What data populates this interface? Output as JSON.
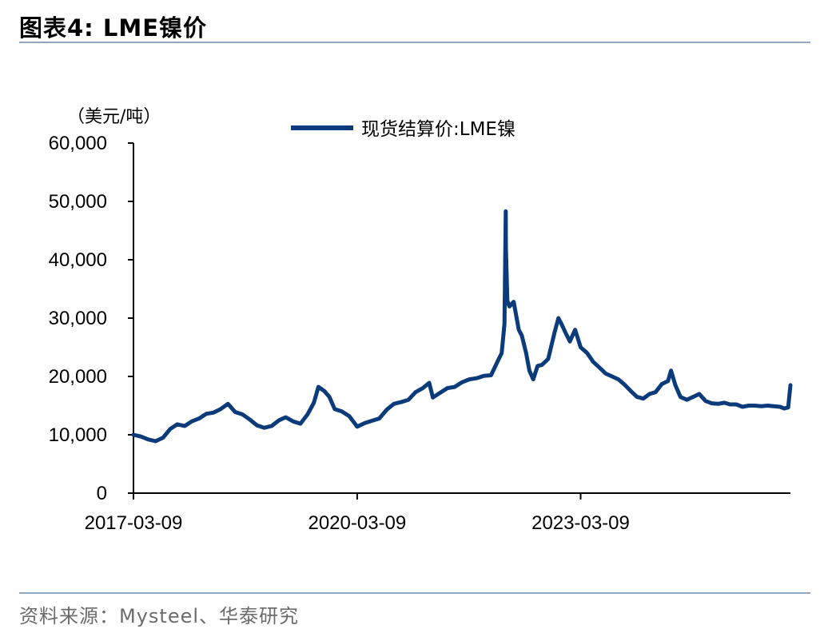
{
  "figure": {
    "title": "图表4:   LME镍价",
    "source": "资料来源：Mysteel、华泰研究"
  },
  "colors": {
    "series": "#0b3b7a",
    "rule": "#8fa7c3",
    "axis": "#000000"
  },
  "chart_data": {
    "type": "line",
    "title": "LME镍价",
    "ylabel": "（美元/吨）",
    "xlabel": "",
    "ylim": [
      0,
      60000
    ],
    "y_ticks": [
      0,
      10000,
      20000,
      30000,
      40000,
      50000,
      60000
    ],
    "y_tick_labels": [
      "0",
      "10,000",
      "20,000",
      "30,000",
      "40,000",
      "50,000",
      "60,000"
    ],
    "x_ticks": [
      "2017-03-09",
      "2020-03-09",
      "2023-03-09"
    ],
    "xlim": [
      "2017-03-09",
      "2025-12-31"
    ],
    "legend": {
      "position": "top-center"
    },
    "grid": false,
    "series": [
      {
        "name": "现货结算价:LME镍",
        "x": [
          "2017-03-09",
          "2017-04-15",
          "2017-05-20",
          "2017-06-25",
          "2017-08-01",
          "2017-09-05",
          "2017-10-10",
          "2017-11-15",
          "2017-12-20",
          "2018-01-25",
          "2018-03-01",
          "2018-04-05",
          "2018-05-10",
          "2018-06-15",
          "2018-07-20",
          "2018-08-25",
          "2018-09-30",
          "2018-11-05",
          "2018-12-10",
          "2019-01-15",
          "2019-02-20",
          "2019-03-25",
          "2019-04-30",
          "2019-06-05",
          "2019-07-10",
          "2019-08-10",
          "2019-09-01",
          "2019-09-30",
          "2019-10-25",
          "2019-11-20",
          "2019-12-25",
          "2020-01-30",
          "2020-03-09",
          "2020-04-15",
          "2020-05-20",
          "2020-06-25",
          "2020-08-01",
          "2020-09-05",
          "2020-10-10",
          "2020-11-15",
          "2020-12-20",
          "2021-01-25",
          "2021-02-25",
          "2021-03-15",
          "2021-04-20",
          "2021-05-25",
          "2021-06-30",
          "2021-08-05",
          "2021-09-10",
          "2021-10-15",
          "2021-11-20",
          "2021-12-25",
          "2022-01-25",
          "2022-02-15",
          "2022-03-01",
          "2022-03-07",
          "2022-03-08",
          "2022-03-15",
          "2022-03-25",
          "2022-04-15",
          "2022-05-10",
          "2022-05-25",
          "2022-06-15",
          "2022-07-01",
          "2022-07-20",
          "2022-08-10",
          "2022-09-01",
          "2022-10-01",
          "2022-11-01",
          "2022-11-20",
          "2022-12-05",
          "2022-12-25",
          "2023-01-15",
          "2023-02-10",
          "2023-03-09",
          "2023-04-10",
          "2023-05-10",
          "2023-06-10",
          "2023-07-10",
          "2023-08-10",
          "2023-09-10",
          "2023-10-10",
          "2023-11-10",
          "2023-12-10",
          "2024-01-10",
          "2024-02-10",
          "2024-03-10",
          "2024-04-10",
          "2024-05-10",
          "2024-05-25",
          "2024-06-15",
          "2024-07-10",
          "2024-08-10",
          "2024-09-10",
          "2024-10-10",
          "2024-11-10",
          "2024-12-10",
          "2025-01-10",
          "2025-02-10",
          "2025-03-10",
          "2025-04-10",
          "2025-05-10",
          "2025-06-10",
          "2025-07-10",
          "2025-08-10",
          "2025-09-10",
          "2025-10-10",
          "2025-11-10",
          "2025-12-01",
          "2025-12-20",
          "2025-12-31"
        ],
        "values": [
          10000,
          9700,
          9200,
          8900,
          9500,
          11000,
          11800,
          11500,
          12300,
          12800,
          13600,
          13800,
          14400,
          15300,
          13900,
          13500,
          12600,
          11600,
          11200,
          11500,
          12500,
          13000,
          12300,
          11900,
          13500,
          15500,
          18200,
          17500,
          16500,
          14400,
          14000,
          13200,
          11400,
          12000,
          12400,
          12800,
          14300,
          15300,
          15600,
          16000,
          17300,
          18000,
          18900,
          16400,
          17200,
          18000,
          18200,
          19000,
          19500,
          19700,
          20100,
          20200,
          22500,
          24000,
          29000,
          48300,
          42000,
          33000,
          32000,
          32800,
          28000,
          27000,
          24000,
          21000,
          19500,
          21800,
          22000,
          23000,
          27500,
          30000,
          29000,
          27500,
          26000,
          28000,
          25000,
          24000,
          22500,
          21500,
          20500,
          20000,
          19500,
          18600,
          17500,
          16500,
          16200,
          17000,
          17300,
          18700,
          19200,
          21000,
          18500,
          16500,
          16000,
          16500,
          17000,
          15800,
          15400,
          15300,
          15500,
          15200,
          15200,
          14800,
          15000,
          15000,
          14900,
          15000,
          14900,
          14800,
          14500,
          14700,
          18500
        ]
      }
    ]
  }
}
